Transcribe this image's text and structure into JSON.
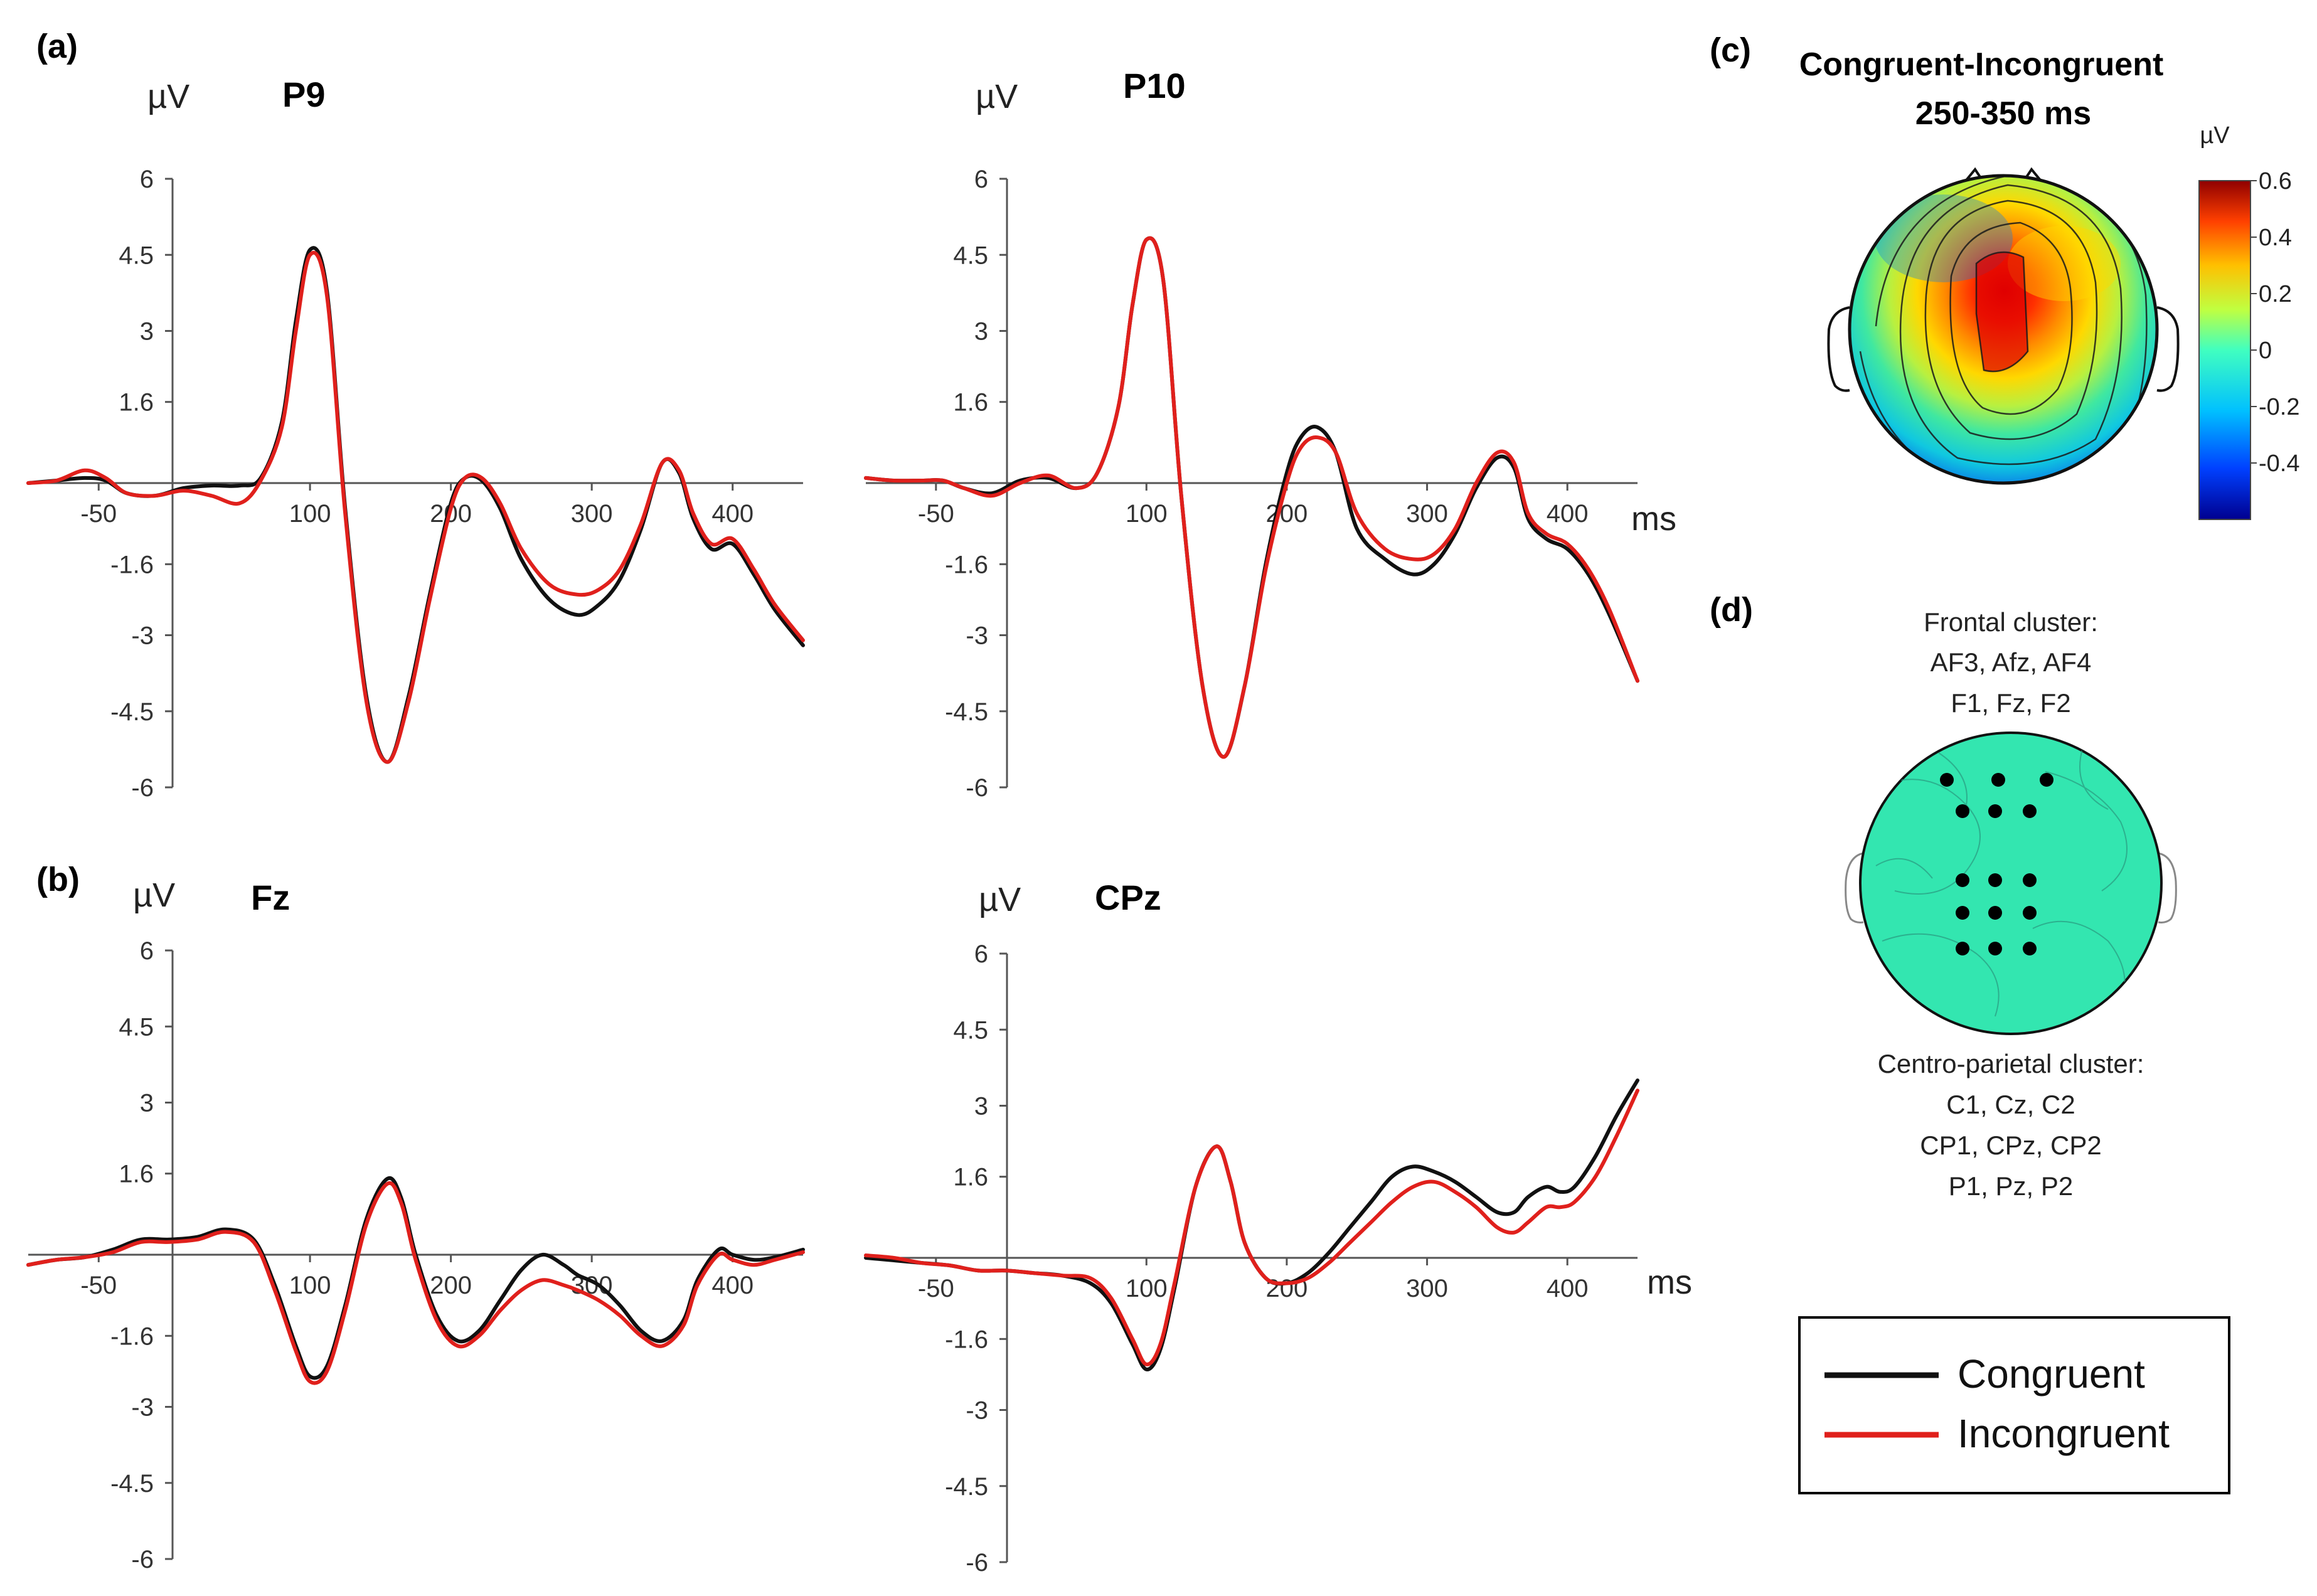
{
  "panels": {
    "a": "(a)",
    "b": "(b)",
    "c": "(c)",
    "d": "(d)"
  },
  "colors": {
    "congruent": "#111111",
    "incongruent": "#e0201c"
  },
  "chart_data": [
    {
      "id": "p9",
      "type": "line",
      "title": "P9",
      "ylabel": "µV",
      "xlabel": "",
      "ylim": [
        -6,
        6
      ],
      "xlim": [
        -100,
        450
      ],
      "yticks": [
        6,
        4.5,
        3,
        1.6,
        -1.6,
        -3,
        -4.5,
        -6
      ],
      "ytick_labels": [
        "6",
        "4.5",
        "3",
        "1.6",
        "-1.6",
        "-3",
        "-4.5",
        "-6"
      ],
      "xticks": [
        -50,
        100,
        200,
        300,
        400
      ],
      "xtick_labels": [
        "-50",
        "100",
        "200",
        "300",
        "400"
      ],
      "series": [
        {
          "name": "Congruent",
          "x": [
            -100,
            -80,
            -60,
            -45,
            -30,
            -10,
            10,
            30,
            50,
            65,
            80,
            90,
            100,
            112,
            125,
            140,
            155,
            170,
            185,
            200,
            210,
            222,
            235,
            250,
            270,
            290,
            305,
            320,
            335,
            350,
            362,
            372,
            385,
            400,
            415,
            430,
            450
          ],
          "y": [
            0,
            0.05,
            0.1,
            0.05,
            -0.2,
            -0.25,
            -0.1,
            -0.05,
            -0.05,
            0.1,
            1.2,
            3.2,
            4.6,
            3.8,
            -0.5,
            -4.2,
            -5.5,
            -4.2,
            -2.2,
            -0.4,
            0.1,
            0.05,
            -0.5,
            -1.5,
            -2.3,
            -2.6,
            -2.4,
            -1.9,
            -0.9,
            0.4,
            0.2,
            -0.7,
            -1.3,
            -1.2,
            -1.8,
            -2.5,
            -3.2
          ]
        },
        {
          "name": "Incongruent",
          "x": [
            -100,
            -80,
            -60,
            -45,
            -30,
            -10,
            10,
            30,
            50,
            65,
            80,
            90,
            100,
            112,
            125,
            140,
            155,
            170,
            185,
            200,
            210,
            222,
            235,
            250,
            270,
            290,
            305,
            320,
            335,
            350,
            362,
            372,
            385,
            400,
            415,
            430,
            450
          ],
          "y": [
            0,
            0.05,
            0.25,
            0.1,
            -0.2,
            -0.25,
            -0.15,
            -0.25,
            -0.4,
            0.05,
            1.1,
            3.0,
            4.5,
            3.7,
            -0.6,
            -4.3,
            -5.5,
            -4.3,
            -2.3,
            -0.5,
            0.1,
            0.1,
            -0.4,
            -1.3,
            -2.0,
            -2.2,
            -2.1,
            -1.7,
            -0.8,
            0.4,
            0.25,
            -0.6,
            -1.2,
            -1.1,
            -1.7,
            -2.4,
            -3.1
          ]
        }
      ]
    },
    {
      "id": "p10",
      "type": "line",
      "title": "P10",
      "ylabel": "µV",
      "xlabel": "ms",
      "ylim": [
        -6,
        6
      ],
      "xlim": [
        -100,
        450
      ],
      "yticks": [
        6,
        4.5,
        3,
        1.6,
        -1.6,
        -3,
        -4.5,
        -6
      ],
      "ytick_labels": [
        "6",
        "4.5",
        "3",
        "1.6",
        "-1.6",
        "-3",
        "-4.5",
        "-6"
      ],
      "xticks": [
        -50,
        100,
        200,
        300,
        400
      ],
      "xtick_labels": [
        "-50",
        "100",
        "200",
        "300",
        "400"
      ],
      "series": [
        {
          "name": "Congruent",
          "x": [
            -100,
            -80,
            -60,
            -45,
            -30,
            -10,
            10,
            30,
            50,
            65,
            80,
            90,
            100,
            112,
            125,
            140,
            155,
            170,
            185,
            200,
            210,
            222,
            235,
            250,
            270,
            290,
            305,
            320,
            335,
            350,
            362,
            372,
            385,
            400,
            415,
            430,
            450
          ],
          "y": [
            0.1,
            0.05,
            0.05,
            0.05,
            -0.1,
            -0.2,
            0.05,
            0.1,
            -0.1,
            0.2,
            1.5,
            3.5,
            4.8,
            4.0,
            -0.3,
            -4.0,
            -5.4,
            -4.0,
            -1.6,
            0.2,
            0.9,
            1.1,
            0.6,
            -0.9,
            -1.5,
            -1.8,
            -1.6,
            -1.0,
            -0.1,
            0.5,
            0.3,
            -0.7,
            -1.1,
            -1.3,
            -1.8,
            -2.6,
            -3.9
          ]
        },
        {
          "name": "Incongruent",
          "x": [
            -100,
            -80,
            -60,
            -45,
            -30,
            -10,
            10,
            30,
            50,
            65,
            80,
            90,
            100,
            112,
            125,
            140,
            155,
            170,
            185,
            200,
            210,
            222,
            235,
            250,
            270,
            290,
            305,
            320,
            335,
            350,
            362,
            372,
            385,
            400,
            415,
            430,
            450
          ],
          "y": [
            0.1,
            0.05,
            0.05,
            0.05,
            -0.1,
            -0.25,
            0.0,
            0.15,
            -0.1,
            0.2,
            1.5,
            3.5,
            4.8,
            4.0,
            -0.3,
            -4.0,
            -5.4,
            -4.0,
            -1.7,
            0.0,
            0.7,
            0.9,
            0.6,
            -0.6,
            -1.3,
            -1.5,
            -1.4,
            -0.9,
            0.0,
            0.6,
            0.4,
            -0.6,
            -1.0,
            -1.2,
            -1.7,
            -2.5,
            -3.9
          ]
        }
      ]
    },
    {
      "id": "fz",
      "type": "line",
      "title": "Fz",
      "ylabel": "µV",
      "xlabel": "",
      "ylim": [
        -6,
        6
      ],
      "xlim": [
        -100,
        450
      ],
      "yticks": [
        6,
        4.5,
        3,
        1.6,
        -1.6,
        -3,
        -4.5,
        -6
      ],
      "ytick_labels": [
        "6",
        "4.5",
        "3",
        "1.6",
        "-1.6",
        "-3",
        "-4.5",
        "-6"
      ],
      "xticks": [
        -50,
        100,
        200,
        300,
        400
      ],
      "xtick_labels": [
        "-50",
        "100",
        "200",
        "300",
        "400"
      ],
      "series": [
        {
          "name": "Congruent",
          "x": [
            -100,
            -80,
            -60,
            -40,
            -20,
            0,
            20,
            40,
            60,
            75,
            90,
            100,
            112,
            125,
            140,
            155,
            165,
            175,
            190,
            205,
            220,
            235,
            250,
            265,
            280,
            290,
            305,
            320,
            335,
            350,
            365,
            375,
            390,
            400,
            415,
            430,
            450
          ],
          "y": [
            -0.2,
            -0.1,
            -0.05,
            0.1,
            0.3,
            0.3,
            0.35,
            0.5,
            0.3,
            -0.6,
            -1.8,
            -2.4,
            -2.2,
            -1.0,
            0.7,
            1.5,
            1.1,
            0.0,
            -1.2,
            -1.7,
            -1.5,
            -0.9,
            -0.3,
            0.0,
            -0.2,
            -0.4,
            -0.6,
            -1.0,
            -1.5,
            -1.7,
            -1.3,
            -0.5,
            0.1,
            0.0,
            -0.1,
            -0.05,
            0.1
          ]
        },
        {
          "name": "Incongruent",
          "x": [
            -100,
            -80,
            -60,
            -40,
            -20,
            0,
            20,
            40,
            60,
            75,
            90,
            100,
            112,
            125,
            140,
            155,
            165,
            175,
            190,
            205,
            220,
            235,
            250,
            265,
            280,
            290,
            305,
            320,
            335,
            350,
            365,
            375,
            390,
            400,
            415,
            430,
            450
          ],
          "y": [
            -0.2,
            -0.1,
            -0.05,
            0.05,
            0.25,
            0.25,
            0.3,
            0.45,
            0.25,
            -0.7,
            -1.9,
            -2.5,
            -2.3,
            -1.1,
            0.6,
            1.4,
            1.0,
            -0.1,
            -1.3,
            -1.8,
            -1.6,
            -1.1,
            -0.7,
            -0.5,
            -0.6,
            -0.7,
            -0.9,
            -1.2,
            -1.6,
            -1.8,
            -1.4,
            -0.6,
            0.0,
            -0.1,
            -0.2,
            -0.1,
            0.05
          ]
        }
      ]
    },
    {
      "id": "cpz",
      "type": "line",
      "title": "CPz",
      "ylabel": "µV",
      "xlabel": "ms",
      "ylim": [
        -6,
        6
      ],
      "xlim": [
        -100,
        450
      ],
      "yticks": [
        6,
        4.5,
        3,
        1.6,
        -1.6,
        -3,
        -4.5,
        -6
      ],
      "ytick_labels": [
        "6",
        "4.5",
        "3",
        "1.6",
        "-1.6",
        "-3",
        "-4.5",
        "-6"
      ],
      "xticks": [
        -50,
        100,
        200,
        300,
        400
      ],
      "xtick_labels": [
        "-50",
        "100",
        "200",
        "300",
        "400"
      ],
      "series": [
        {
          "name": "Congruent",
          "x": [
            -100,
            -80,
            -60,
            -40,
            -20,
            0,
            20,
            40,
            60,
            75,
            90,
            100,
            110,
            120,
            135,
            150,
            160,
            170,
            185,
            200,
            215,
            230,
            245,
            260,
            275,
            290,
            305,
            320,
            335,
            350,
            362,
            372,
            385,
            395,
            405,
            420,
            435,
            450
          ],
          "y": [
            0.0,
            -0.05,
            -0.1,
            -0.15,
            -0.25,
            -0.25,
            -0.3,
            -0.35,
            -0.5,
            -0.9,
            -1.7,
            -2.2,
            -1.8,
            -0.6,
            1.4,
            2.2,
            1.5,
            0.3,
            -0.4,
            -0.5,
            -0.3,
            0.1,
            0.6,
            1.1,
            1.6,
            1.8,
            1.7,
            1.5,
            1.2,
            0.9,
            0.9,
            1.2,
            1.4,
            1.3,
            1.4,
            2.0,
            2.8,
            3.5
          ]
        },
        {
          "name": "Incongruent",
          "x": [
            -100,
            -80,
            -60,
            -40,
            -20,
            0,
            20,
            40,
            60,
            75,
            90,
            100,
            110,
            120,
            135,
            150,
            160,
            170,
            185,
            200,
            215,
            230,
            245,
            260,
            275,
            290,
            305,
            320,
            335,
            350,
            362,
            372,
            385,
            395,
            405,
            420,
            435,
            450
          ],
          "y": [
            0.05,
            0.0,
            -0.1,
            -0.15,
            -0.25,
            -0.25,
            -0.3,
            -0.35,
            -0.4,
            -0.8,
            -1.6,
            -2.1,
            -1.7,
            -0.5,
            1.4,
            2.2,
            1.5,
            0.3,
            -0.4,
            -0.5,
            -0.4,
            -0.1,
            0.3,
            0.7,
            1.1,
            1.4,
            1.5,
            1.3,
            1.0,
            0.6,
            0.5,
            0.7,
            1.0,
            1.0,
            1.1,
            1.6,
            2.4,
            3.3
          ]
        }
      ]
    }
  ],
  "topomap": {
    "title_line1": "Congruent-Incongruent",
    "title_line2": "250-350 ms",
    "colorbar_unit": "µV",
    "colorbar_ticks": [
      "0.6",
      "0.4",
      "0.2",
      "0",
      "-0.2",
      "-0.4"
    ],
    "colorbar_range": [
      -0.6,
      0.6
    ],
    "colormap_stops": [
      "#00008f",
      "#0040ff",
      "#00c0ff",
      "#40ffc0",
      "#c0ff40",
      "#ffc000",
      "#ff4000",
      "#8f0000"
    ]
  },
  "cluster_map": {
    "frontal_label": "Frontal cluster:",
    "frontal_line1": "AF3, Afz, AF4",
    "frontal_line2": "F1, Fz, F2",
    "centro_label": "Centro-parietal cluster:",
    "centro_line1": "C1, Cz, C2",
    "centro_line2": "CP1, CPz, CP2",
    "centro_line3": "P1, Pz, P2",
    "head_color": "#33e6b0"
  },
  "legend": {
    "congruent": "Congruent",
    "incongruent": "Incongruent"
  }
}
